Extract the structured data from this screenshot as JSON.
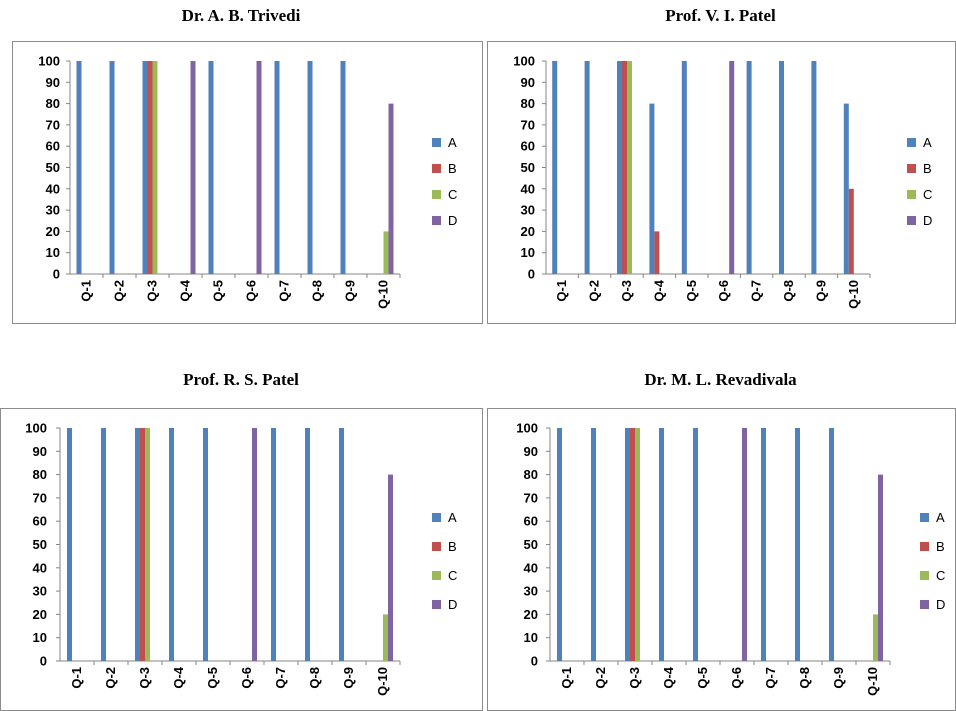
{
  "chart_data": [
    {
      "type": "bar",
      "title": "Dr. A. B. Trivedi",
      "categories": [
        "Q-1",
        "Q-2",
        "Q-3",
        "Q-4",
        "Q-5",
        "Q-6",
        "Q-7",
        "Q-8",
        "Q-9",
        "Q-10"
      ],
      "series": [
        {
          "name": "A",
          "values": [
            100,
            100,
            100,
            0,
            100,
            0,
            100,
            100,
            100,
            0
          ]
        },
        {
          "name": "B",
          "values": [
            0,
            0,
            100,
            0,
            0,
            0,
            0,
            0,
            0,
            0
          ]
        },
        {
          "name": "C",
          "values": [
            0,
            0,
            100,
            0,
            0,
            0,
            0,
            0,
            0,
            20
          ]
        },
        {
          "name": "D",
          "values": [
            0,
            0,
            0,
            100,
            0,
            100,
            0,
            0,
            0,
            80
          ]
        }
      ],
      "yticks": [
        0,
        10,
        20,
        30,
        40,
        50,
        60,
        70,
        80,
        90,
        100
      ],
      "ylim": [
        0,
        100
      ],
      "legend": "right"
    },
    {
      "type": "bar",
      "title": "Prof. V. I. Patel",
      "categories": [
        "Q-1",
        "Q-2",
        "Q-3",
        "Q-4",
        "Q-5",
        "Q-6",
        "Q-7",
        "Q-8",
        "Q-9",
        "Q-10"
      ],
      "series": [
        {
          "name": "A",
          "values": [
            100,
            100,
            100,
            80,
            100,
            0,
            100,
            100,
            100,
            80
          ]
        },
        {
          "name": "B",
          "values": [
            0,
            0,
            100,
            20,
            0,
            0,
            0,
            0,
            0,
            40
          ]
        },
        {
          "name": "C",
          "values": [
            0,
            0,
            100,
            0,
            0,
            0,
            0,
            0,
            0,
            0
          ]
        },
        {
          "name": "D",
          "values": [
            0,
            0,
            0,
            0,
            0,
            100,
            0,
            0,
            0,
            0
          ]
        }
      ],
      "yticks": [
        0,
        10,
        20,
        30,
        40,
        50,
        60,
        70,
        80,
        90,
        100
      ],
      "ylim": [
        0,
        100
      ],
      "legend": "right"
    },
    {
      "type": "bar",
      "title": "Prof. R. S. Patel",
      "categories": [
        "Q-1",
        "Q-2",
        "Q-3",
        "Q-4",
        "Q-5",
        "Q-6",
        "Q-7",
        "Q-8",
        "Q-9",
        "Q-10"
      ],
      "series": [
        {
          "name": "A",
          "values": [
            100,
            100,
            100,
            100,
            100,
            0,
            100,
            100,
            100,
            0
          ]
        },
        {
          "name": "B",
          "values": [
            0,
            0,
            100,
            0,
            0,
            0,
            0,
            0,
            0,
            0
          ]
        },
        {
          "name": "C",
          "values": [
            0,
            0,
            100,
            0,
            0,
            0,
            0,
            0,
            0,
            20
          ]
        },
        {
          "name": "D",
          "values": [
            0,
            0,
            0,
            0,
            0,
            100,
            0,
            0,
            0,
            80
          ]
        }
      ],
      "yticks": [
        0,
        10,
        20,
        30,
        40,
        50,
        60,
        70,
        80,
        90,
        100
      ],
      "ylim": [
        0,
        100
      ],
      "legend": "right"
    },
    {
      "type": "bar",
      "title": "Dr. M. L. Revadivala",
      "categories": [
        "Q-1",
        "Q-2",
        "Q-3",
        "Q-4",
        "Q-5",
        "Q-6",
        "Q-7",
        "Q-8",
        "Q-9",
        "Q-10"
      ],
      "series": [
        {
          "name": "A",
          "values": [
            100,
            100,
            100,
            100,
            100,
            0,
            100,
            100,
            100,
            0
          ]
        },
        {
          "name": "B",
          "values": [
            0,
            0,
            100,
            0,
            0,
            0,
            0,
            0,
            0,
            0
          ]
        },
        {
          "name": "C",
          "values": [
            0,
            0,
            100,
            0,
            0,
            0,
            0,
            0,
            0,
            20
          ]
        },
        {
          "name": "D",
          "values": [
            0,
            0,
            0,
            0,
            0,
            100,
            0,
            0,
            0,
            80
          ]
        }
      ],
      "yticks": [
        0,
        10,
        20,
        30,
        40,
        50,
        60,
        70,
        80,
        90,
        100
      ],
      "ylim": [
        0,
        100
      ],
      "legend": "right"
    }
  ],
  "colors": {
    "A": "#4F81BD",
    "B": "#C0504D",
    "C": "#9BBB59",
    "D": "#8064A2"
  }
}
